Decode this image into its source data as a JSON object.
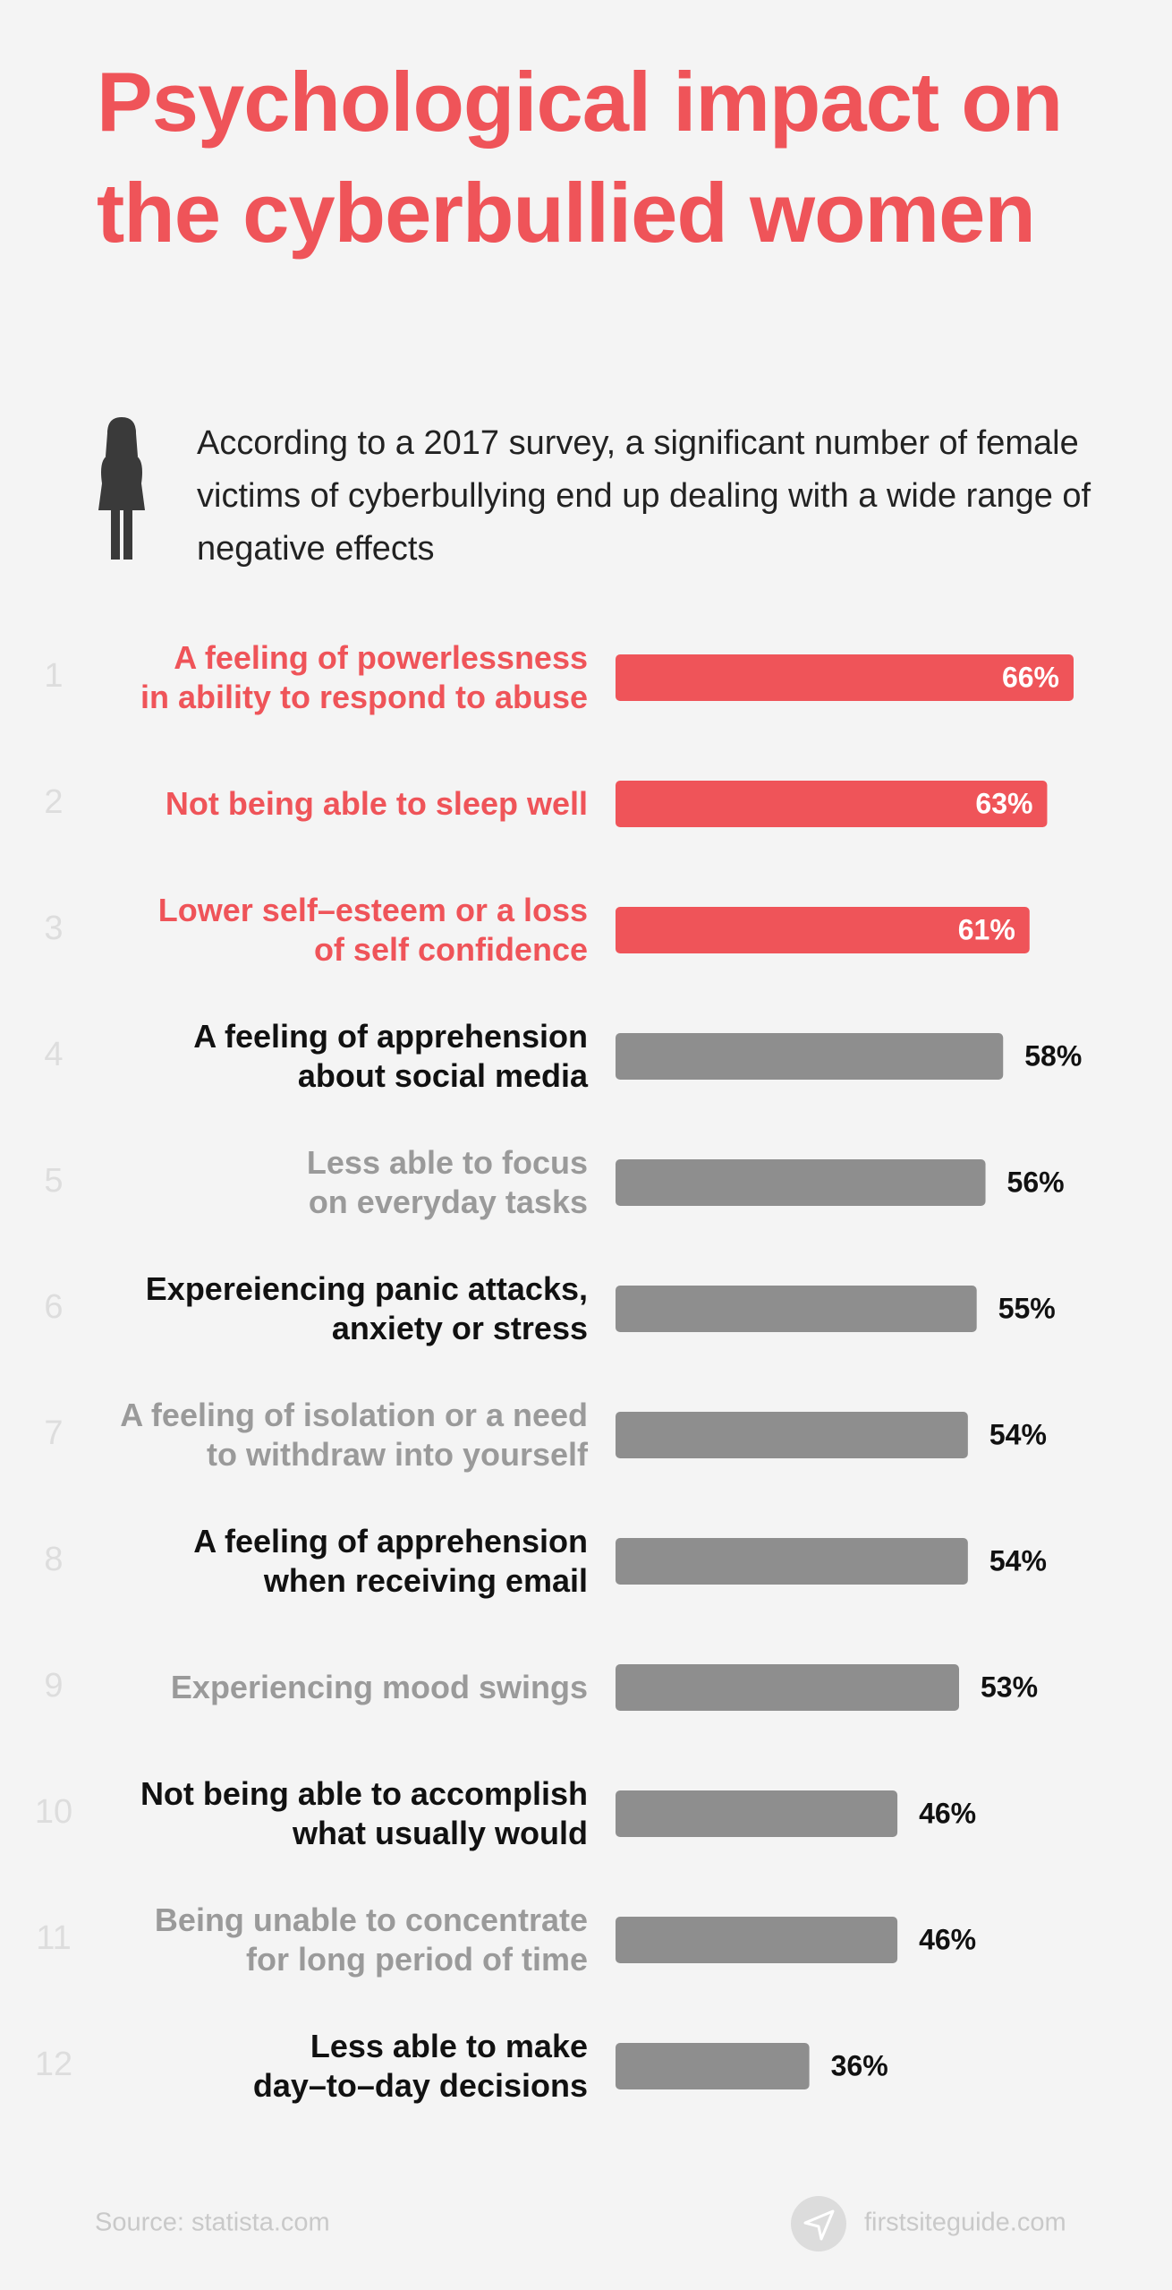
{
  "chart_data": {
    "type": "hbar",
    "title": "Psychological impact on the cyberbullied women",
    "subtitle": "According to a 2017 survey, a significant number of female victims of cyberbullying end up dealing with a wide range of negative effects",
    "ranks": [
      1,
      2,
      3,
      4,
      5,
      6,
      7,
      8,
      9,
      10,
      11,
      12
    ],
    "categories": [
      "A feeling of powerlessness\nin ability to respond to abuse",
      "Not being able to sleep well",
      "Lower self–esteem or a loss\nof self confidence",
      "A feeling of apprehension\nabout social media",
      "Less able to focus\non everyday tasks",
      "Expereiencing panic attacks,\nanxiety or stress",
      "A feeling of isolation or a need\nto withdraw into yourself",
      "A feeling of apprehension\nwhen receiving email",
      "Experiencing mood swings",
      "Not being able to accomplish\nwhat usually would",
      "Being unable to concentrate\nfor long period of time",
      "Less able to make\nday–to–day decisions"
    ],
    "values": [
      66,
      63,
      61,
      58,
      56,
      55,
      54,
      54,
      53,
      46,
      46,
      36
    ],
    "value_labels": [
      "66%",
      "63%",
      "61%",
      "58%",
      "56%",
      "55%",
      "54%",
      "54%",
      "53%",
      "46%",
      "46%",
      "36%"
    ],
    "xlim": [
      14,
      66
    ],
    "highlight_color": "#ef5459",
    "bar_colors": [
      "#ef5459",
      "#ef5459",
      "#ef5459",
      "#8e8e8e",
      "#8e8e8e",
      "#8e8e8e",
      "#8e8e8e",
      "#8e8e8e",
      "#8e8e8e",
      "#8e8e8e",
      "#8e8e8e",
      "#8e8e8e"
    ],
    "label_colors": [
      "#ef5459",
      "#ef5459",
      "#ef5459",
      "#111111",
      "#9a9a9a",
      "#111111",
      "#9a9a9a",
      "#111111",
      "#9a9a9a",
      "#111111",
      "#9a9a9a",
      "#111111"
    ],
    "source": "Source: statista.com",
    "brand": "firstsiteguide.com"
  }
}
